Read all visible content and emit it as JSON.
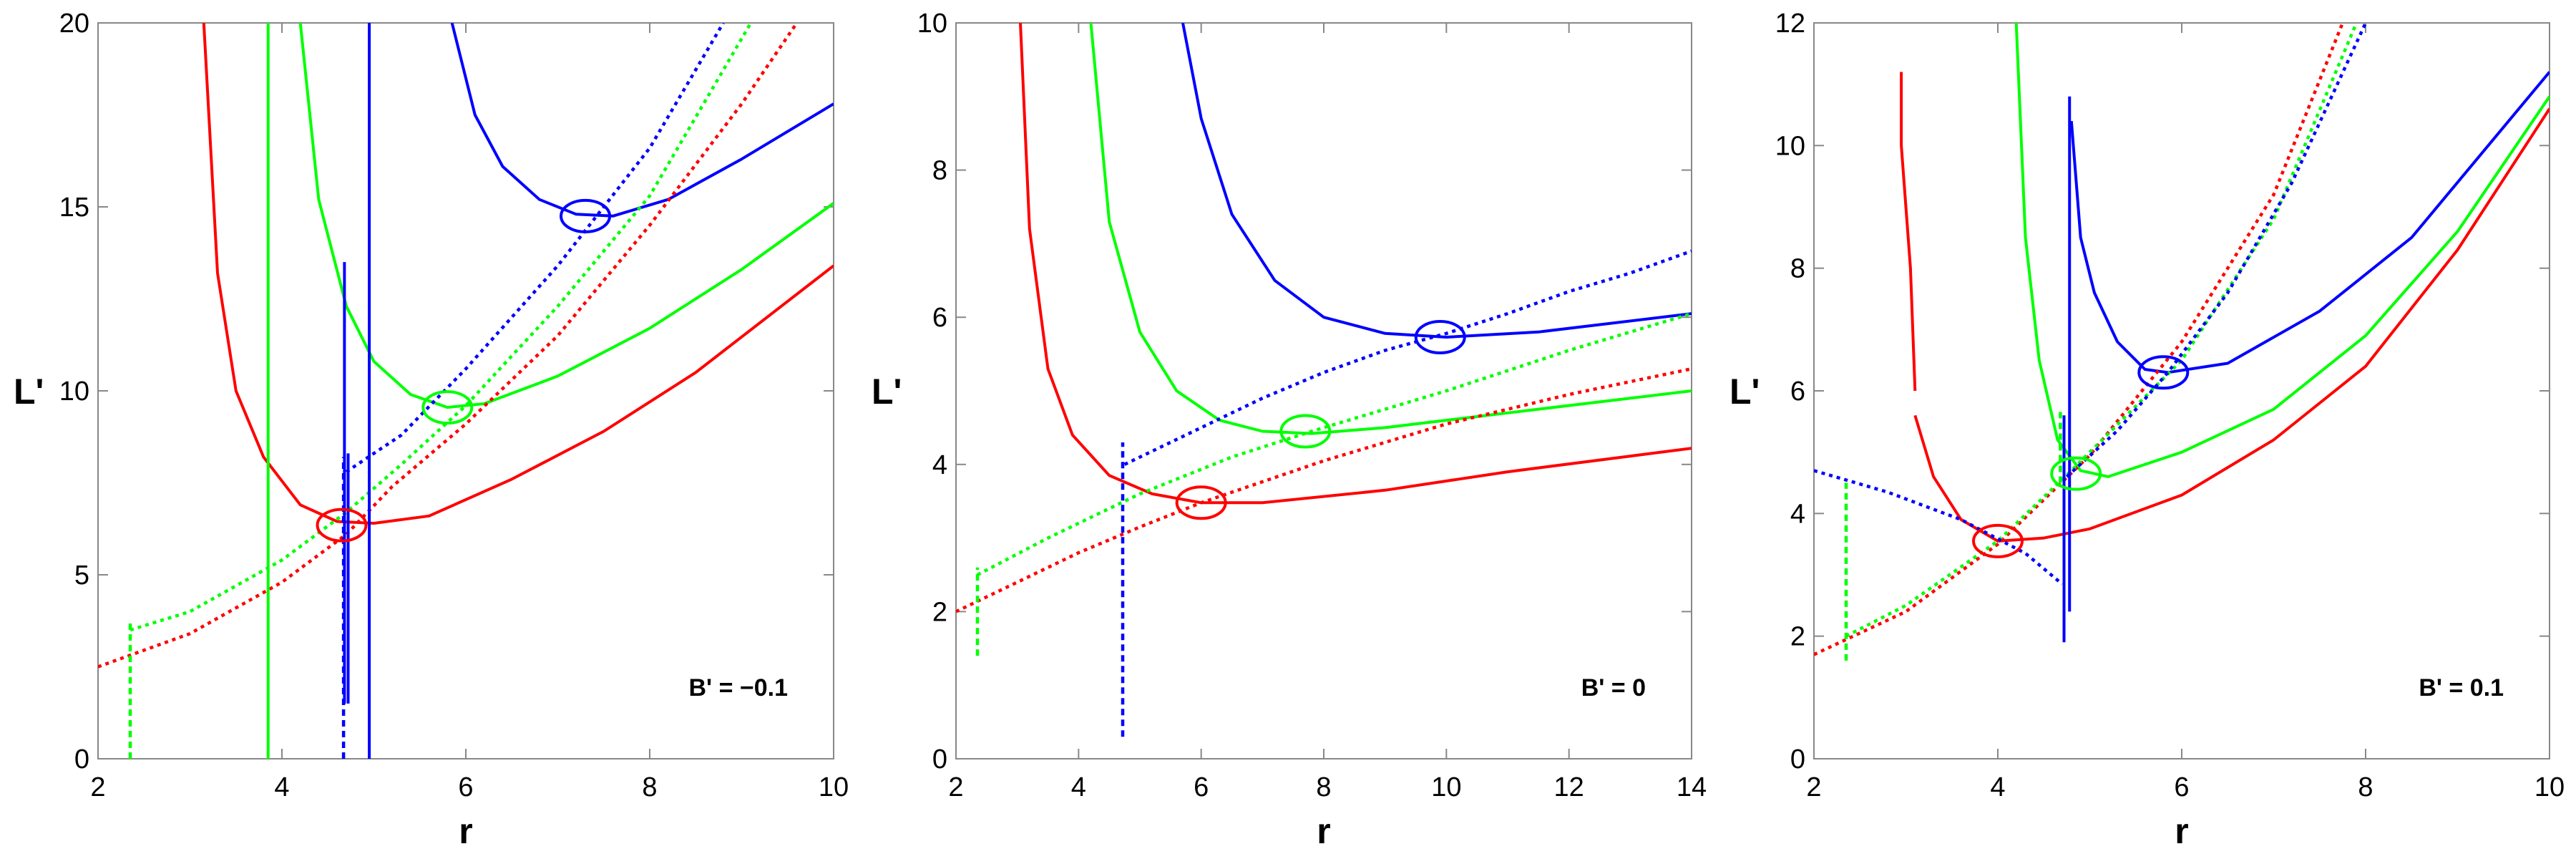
{
  "chart_data": [
    {
      "type": "line",
      "xlabel": "r",
      "ylabel": "L'",
      "xlim": [
        2,
        10
      ],
      "ylim": [
        0,
        20
      ],
      "xticks": [
        2,
        4,
        6,
        8,
        10
      ],
      "yticks": [
        0,
        5,
        10,
        15,
        20
      ],
      "annotation": "B' = −0.1",
      "series": [
        {
          "color": "#ff0000",
          "style": "solid",
          "points": [
            [
              3.15,
              20
            ],
            [
              3.3,
              13.2
            ],
            [
              3.5,
              10
            ],
            [
              3.8,
              8.2
            ],
            [
              4.2,
              6.9
            ],
            [
              4.6,
              6.45
            ],
            [
              5.0,
              6.4
            ],
            [
              5.6,
              6.6
            ],
            [
              6.5,
              7.6
            ],
            [
              7.5,
              8.9
            ],
            [
              8.5,
              10.5
            ],
            [
              10,
              13.4
            ]
          ]
        },
        {
          "color": "#00ff00",
          "style": "solid",
          "points": [
            [
              4.2,
              20
            ],
            [
              4.4,
              15.2
            ],
            [
              4.7,
              12.3
            ],
            [
              5.0,
              10.8
            ],
            [
              5.4,
              9.9
            ],
            [
              5.8,
              9.55
            ],
            [
              6.2,
              9.65
            ],
            [
              7.0,
              10.4
            ],
            [
              8.0,
              11.7
            ],
            [
              9.0,
              13.3
            ],
            [
              10,
              15.1
            ]
          ]
        },
        {
          "color": "#0000ff",
          "style": "solid",
          "points": [
            [
              5.85,
              20
            ],
            [
              6.1,
              17.5
            ],
            [
              6.4,
              16.1
            ],
            [
              6.8,
              15.2
            ],
            [
              7.2,
              14.8
            ],
            [
              7.6,
              14.75
            ],
            [
              8.2,
              15.2
            ],
            [
              9.0,
              16.3
            ],
            [
              10,
              17.8
            ]
          ]
        },
        {
          "color": "#ff0000",
          "style": "dotted",
          "points": [
            [
              2.0,
              2.5
            ],
            [
              3.0,
              3.4
            ],
            [
              4.0,
              4.8
            ],
            [
              4.7,
              6.1
            ],
            [
              5.2,
              7.4
            ],
            [
              6.0,
              9.1
            ],
            [
              7.0,
              11.5
            ],
            [
              8.0,
              14.5
            ],
            [
              9.0,
              17.8
            ],
            [
              9.6,
              20
            ]
          ]
        },
        {
          "color": "#00ff00",
          "style": "dotted",
          "points": [
            [
              2.35,
              3.5
            ],
            [
              3.0,
              4.0
            ],
            [
              4.0,
              5.4
            ],
            [
              4.7,
              6.7
            ],
            [
              5.3,
              8.0
            ],
            [
              6.0,
              9.6
            ],
            [
              7.0,
              12.3
            ],
            [
              8.0,
              15.3
            ],
            [
              9.1,
              20
            ]
          ]
        },
        {
          "color": "#0000ff",
          "style": "dotted",
          "points": [
            [
              4.7,
              7.8
            ],
            [
              5.3,
              8.8
            ],
            [
              6.0,
              10.6
            ],
            [
              7.0,
              13.4
            ],
            [
              8.0,
              16.6
            ],
            [
              8.8,
              20
            ]
          ]
        },
        {
          "color": "#0000ff",
          "style": "dashed",
          "points": [
            [
              4.67,
              0
            ],
            [
              4.67,
              8.2
            ]
          ]
        },
        {
          "color": "#00ff00",
          "style": "dashed",
          "points": [
            [
              2.35,
              0
            ],
            [
              2.35,
              3.7
            ]
          ]
        }
      ],
      "vlines": [
        {
          "color": "#00ff00",
          "x": 3.85,
          "ymin": 0,
          "ymax": 20
        },
        {
          "color": "#0000ff",
          "x": 4.95,
          "ymin": 0,
          "ymax": 20
        },
        {
          "color": "#0000ff",
          "x": 4.68,
          "ymin": 1.5,
          "ymax": 13.5
        },
        {
          "color": "#0000ff",
          "x": 4.72,
          "ymin": 1.5,
          "ymax": 8.3
        }
      ],
      "markers": [
        {
          "color": "#ff0000",
          "x": 4.65,
          "y": 6.35
        },
        {
          "color": "#00ff00",
          "x": 5.8,
          "y": 9.55
        },
        {
          "color": "#0000ff",
          "x": 7.3,
          "y": 14.75
        }
      ]
    },
    {
      "type": "line",
      "xlabel": "r",
      "ylabel": "L'",
      "xlim": [
        2,
        14
      ],
      "ylim": [
        0,
        10
      ],
      "xticks": [
        2,
        4,
        6,
        8,
        10,
        12,
        14
      ],
      "yticks": [
        0,
        2,
        4,
        6,
        8,
        10
      ],
      "annotation": "B' = 0",
      "series": [
        {
          "color": "#ff0000",
          "style": "solid",
          "points": [
            [
              3.05,
              10
            ],
            [
              3.2,
              7.2
            ],
            [
              3.5,
              5.3
            ],
            [
              3.9,
              4.4
            ],
            [
              4.5,
              3.85
            ],
            [
              5.2,
              3.6
            ],
            [
              6.0,
              3.48
            ],
            [
              7.0,
              3.48
            ],
            [
              9.0,
              3.65
            ],
            [
              11.0,
              3.9
            ],
            [
              14.0,
              4.22
            ]
          ]
        },
        {
          "color": "#00ff00",
          "style": "solid",
          "points": [
            [
              4.2,
              10
            ],
            [
              4.5,
              7.3
            ],
            [
              5.0,
              5.8
            ],
            [
              5.6,
              5.0
            ],
            [
              6.3,
              4.6
            ],
            [
              7.0,
              4.45
            ],
            [
              7.8,
              4.42
            ],
            [
              9.0,
              4.5
            ],
            [
              11.0,
              4.7
            ],
            [
              14.0,
              5.0
            ]
          ]
        },
        {
          "color": "#0000ff",
          "style": "solid",
          "points": [
            [
              5.7,
              10
            ],
            [
              6.0,
              8.7
            ],
            [
              6.5,
              7.4
            ],
            [
              7.2,
              6.5
            ],
            [
              8.0,
              6.0
            ],
            [
              9.0,
              5.78
            ],
            [
              10.0,
              5.73
            ],
            [
              11.5,
              5.8
            ],
            [
              14.0,
              6.05
            ]
          ]
        },
        {
          "color": "#ff0000",
          "style": "dotted",
          "points": [
            [
              2.0,
              2.0
            ],
            [
              3.0,
              2.4
            ],
            [
              4.0,
              2.8
            ],
            [
              5.0,
              3.15
            ],
            [
              6.0,
              3.48
            ],
            [
              8.0,
              4.05
            ],
            [
              10.0,
              4.55
            ],
            [
              12.0,
              4.95
            ],
            [
              14.0,
              5.3
            ]
          ]
        },
        {
          "color": "#00ff00",
          "style": "dotted",
          "points": [
            [
              2.35,
              2.5
            ],
            [
              3.5,
              3.0
            ],
            [
              5.0,
              3.6
            ],
            [
              6.5,
              4.1
            ],
            [
              7.8,
              4.45
            ],
            [
              10.0,
              5.0
            ],
            [
              12.0,
              5.55
            ],
            [
              14.0,
              6.05
            ]
          ]
        },
        {
          "color": "#0000ff",
          "style": "dotted",
          "points": [
            [
              4.75,
              4.0
            ],
            [
              6.0,
              4.5
            ],
            [
              7.0,
              4.9
            ],
            [
              8.0,
              5.25
            ],
            [
              9.0,
              5.55
            ],
            [
              10.0,
              5.78
            ],
            [
              11.0,
              6.05
            ],
            [
              12.0,
              6.35
            ],
            [
              13.0,
              6.6
            ],
            [
              14.0,
              6.9
            ]
          ]
        },
        {
          "color": "#00ff00",
          "style": "dashed",
          "points": [
            [
              2.35,
              1.4
            ],
            [
              2.35,
              2.6
            ]
          ]
        },
        {
          "color": "#0000ff",
          "style": "dashed",
          "points": [
            [
              4.72,
              0.3
            ],
            [
              4.72,
              4.3
            ]
          ]
        }
      ],
      "vlines": [],
      "markers": [
        {
          "color": "#ff0000",
          "x": 6.0,
          "y": 3.48
        },
        {
          "color": "#00ff00",
          "x": 7.7,
          "y": 4.45
        },
        {
          "color": "#0000ff",
          "x": 9.9,
          "y": 5.73
        }
      ]
    },
    {
      "type": "line",
      "xlabel": "r",
      "ylabel": "L'",
      "xlim": [
        2,
        10
      ],
      "ylim": [
        0,
        12
      ],
      "xticks": [
        2,
        4,
        6,
        8,
        10
      ],
      "yticks": [
        0,
        2,
        4,
        6,
        8,
        10,
        12
      ],
      "annotation": "B' = 0.1",
      "series": [
        {
          "color": "#ff0000",
          "style": "solid",
          "points": [
            [
              2.95,
              11.2
            ],
            [
              2.95,
              10.0
            ],
            [
              3.05,
              8.0
            ],
            [
              3.1,
              6.0
            ]
          ]
        },
        {
          "color": "#ff0000",
          "style": "solid",
          "points": [
            [
              3.1,
              5.6
            ],
            [
              3.3,
              4.6
            ],
            [
              3.6,
              3.9
            ],
            [
              4.0,
              3.55
            ],
            [
              4.5,
              3.6
            ],
            [
              5.0,
              3.75
            ],
            [
              6.0,
              4.3
            ],
            [
              7.0,
              5.2
            ],
            [
              8.0,
              6.4
            ],
            [
              9.0,
              8.3
            ],
            [
              10.0,
              10.6
            ]
          ]
        },
        {
          "color": "#00ff00",
          "style": "solid",
          "points": [
            [
              4.2,
              12
            ],
            [
              4.3,
              8.5
            ],
            [
              4.45,
              6.5
            ],
            [
              4.65,
              5.2
            ],
            [
              4.9,
              4.7
            ],
            [
              5.2,
              4.6
            ],
            [
              6.0,
              5.0
            ],
            [
              7.0,
              5.7
            ],
            [
              8.0,
              6.9
            ],
            [
              9.0,
              8.6
            ],
            [
              10.0,
              10.8
            ]
          ]
        },
        {
          "color": "#0000ff",
          "style": "solid",
          "points": [
            [
              4.8,
              10.4
            ],
            [
              4.9,
              8.5
            ],
            [
              5.05,
              7.6
            ],
            [
              5.3,
              6.8
            ],
            [
              5.6,
              6.35
            ],
            [
              5.85,
              6.3
            ],
            [
              6.5,
              6.45
            ],
            [
              7.5,
              7.3
            ],
            [
              8.5,
              8.5
            ],
            [
              10.0,
              11.2
            ]
          ]
        },
        {
          "color": "#ff0000",
          "style": "dotted",
          "points": [
            [
              2.0,
              1.7
            ],
            [
              3.0,
              2.4
            ],
            [
              4.0,
              3.5
            ],
            [
              5.0,
              4.95
            ],
            [
              6.0,
              6.8
            ],
            [
              7.0,
              9.2
            ],
            [
              7.75,
              12
            ]
          ]
        },
        {
          "color": "#00ff00",
          "style": "dotted",
          "points": [
            [
              2.35,
              2.0
            ],
            [
              3.0,
              2.5
            ],
            [
              4.0,
              3.55
            ],
            [
              4.8,
              4.7
            ],
            [
              6.0,
              6.5
            ],
            [
              7.0,
              8.8
            ],
            [
              7.9,
              12
            ]
          ]
        },
        {
          "color": "#0000ff",
          "style": "dotted",
          "points": [
            [
              2.0,
              4.7
            ],
            [
              2.8,
              4.35
            ],
            [
              3.6,
              3.9
            ],
            [
              4.3,
              3.35
            ],
            [
              4.7,
              2.85
            ]
          ]
        },
        {
          "color": "#0000ff",
          "style": "dotted",
          "points": [
            [
              4.75,
              4.6
            ],
            [
              5.3,
              5.35
            ],
            [
              5.85,
              6.3
            ],
            [
              6.5,
              7.6
            ],
            [
              7.2,
              9.4
            ],
            [
              8.0,
              12
            ]
          ]
        },
        {
          "color": "#00ff00",
          "style": "dashed",
          "points": [
            [
              2.35,
              1.6
            ],
            [
              2.35,
              4.5
            ]
          ]
        },
        {
          "color": "#00ff00",
          "style": "dashed",
          "points": [
            [
              4.68,
              4.5
            ],
            [
              4.68,
              5.7
            ]
          ]
        }
      ],
      "vlines": [
        {
          "color": "#0000ff",
          "x": 4.72,
          "ymin": 1.9,
          "ymax": 5.6
        },
        {
          "color": "#0000ff",
          "x": 4.78,
          "ymin": 2.4,
          "ymax": 10.8
        }
      ],
      "markers": [
        {
          "color": "#ff0000",
          "x": 4.0,
          "y": 3.55
        },
        {
          "color": "#00ff00",
          "x": 4.85,
          "y": 4.65
        },
        {
          "color": "#0000ff",
          "x": 5.8,
          "y": 6.3
        }
      ]
    }
  ]
}
